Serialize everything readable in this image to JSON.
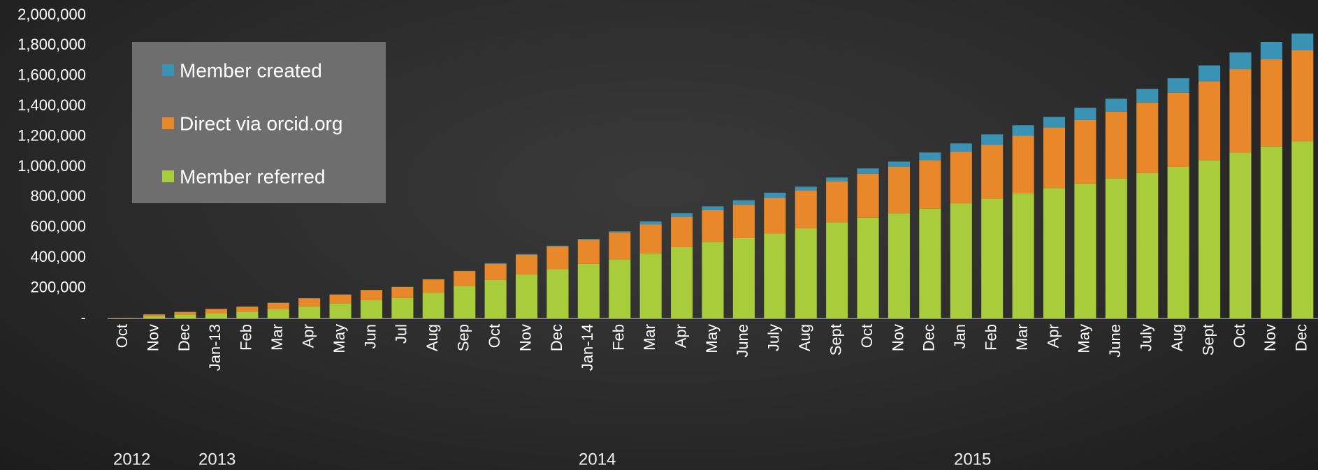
{
  "chart_data": {
    "type": "stacked_bar",
    "categories": [
      "Oct",
      "Nov",
      "Dec",
      "Jan-13",
      "Feb",
      "Mar",
      "Apr",
      "May",
      "Jun",
      "Jul",
      "Aug",
      "Sep",
      "Oct",
      "Nov",
      "Dec",
      "Jan-14",
      "Feb",
      "Mar",
      "Apr",
      "May",
      "June",
      "July",
      "Aug",
      "Sept",
      "Oct",
      "Nov",
      "Dec",
      "Jan",
      "Feb",
      "Mar",
      "Apr",
      "May",
      "June",
      "July",
      "Aug",
      "Sept",
      "Oct",
      "Nov",
      "Dec"
    ],
    "series": [
      {
        "name": "Member referred",
        "color": "#a8cc3c",
        "values": [
          2000,
          15000,
          25000,
          35000,
          45000,
          60000,
          80000,
          100000,
          120000,
          135000,
          170000,
          215000,
          255000,
          290000,
          325000,
          360000,
          390000,
          430000,
          470000,
          505000,
          530000,
          560000,
          595000,
          635000,
          665000,
          695000,
          725000,
          760000,
          790000,
          825000,
          860000,
          890000,
          925000,
          960000,
          1000000,
          1045000,
          1095000,
          1135000,
          1170000
        ]
      },
      {
        "name": "Direct via orcid.org",
        "color": "#e8882a",
        "values": [
          1000,
          12000,
          18000,
          28000,
          33000,
          43000,
          53000,
          58000,
          68000,
          73000,
          88000,
          98000,
          105000,
          130000,
          150000,
          160000,
          178000,
          190000,
          200000,
          210000,
          220000,
          235000,
          250000,
          270000,
          290000,
          305000,
          320000,
          340000,
          355000,
          380000,
          400000,
          420000,
          440000,
          465000,
          490000,
          520000,
          550000,
          575000,
          600000
        ]
      },
      {
        "name": "Member created",
        "color": "#3a93b4",
        "values": [
          0,
          1000,
          1000,
          1000,
          1000,
          1000,
          1000,
          1000,
          1000,
          1000,
          1000,
          1000,
          5000,
          5000,
          5000,
          5000,
          7000,
          20000,
          25000,
          25000,
          30000,
          35000,
          25000,
          25000,
          35000,
          35000,
          50000,
          55000,
          70000,
          70000,
          70000,
          80000,
          85000,
          90000,
          95000,
          105000,
          110000,
          115000,
          110000
        ]
      }
    ],
    "ylim": [
      0,
      2000000
    ],
    "yticks": [
      {
        "value": 0,
        "label": "-"
      },
      {
        "value": 200000,
        "label": "200,000"
      },
      {
        "value": 400000,
        "label": "400,000"
      },
      {
        "value": 600000,
        "label": "600,000"
      },
      {
        "value": 800000,
        "label": "800,000"
      },
      {
        "value": 1000000,
        "label": "1,000,000"
      },
      {
        "value": 1200000,
        "label": "1,200,000"
      },
      {
        "value": 1400000,
        "label": "1,400,000"
      },
      {
        "value": 1600000,
        "label": "1,600,000"
      },
      {
        "value": 1800000,
        "label": "1,800,000"
      },
      {
        "value": 2000000,
        "label": "2,000,000"
      }
    ],
    "annotations": [
      "2012",
      "2013",
      "2014",
      "2015"
    ],
    "legend": "upper left"
  }
}
